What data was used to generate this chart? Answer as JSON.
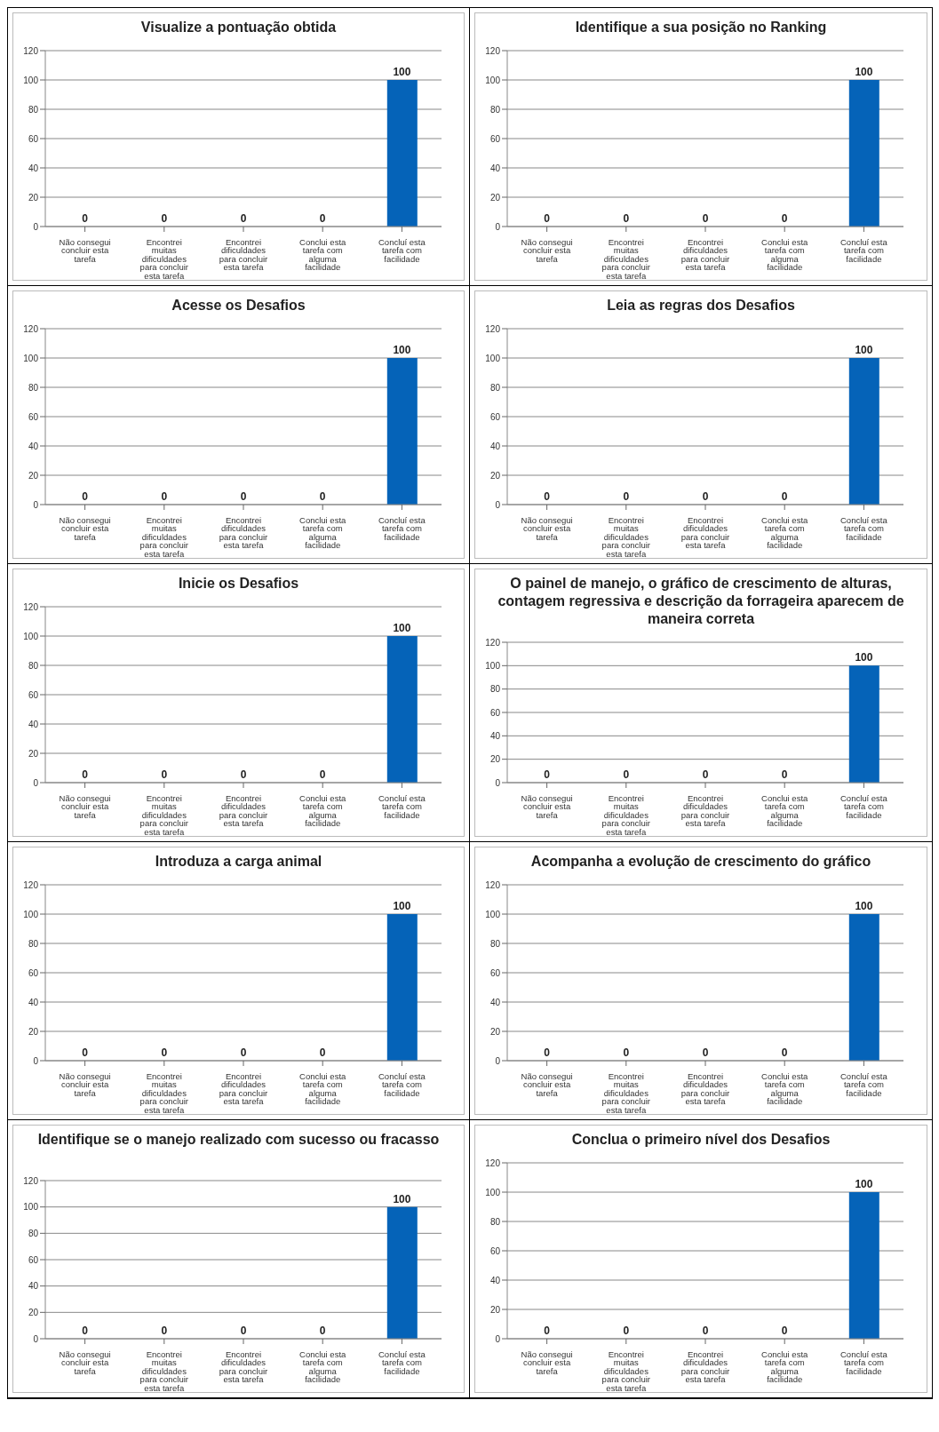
{
  "chart_data": [
    {
      "type": "bar",
      "title": "Visualize a pontuação obtida",
      "categories": [
        "Não consegui concluir esta tarefa",
        "Encontrei muitas dificuldades para concluir esta tarefa",
        "Encontrei dificuldades para concluir esta tarefa",
        "Conclui esta tarefa com alguma facilidade",
        "Concluí esta tarefa com facilidade"
      ],
      "values": [
        0,
        0,
        0,
        0,
        100
      ],
      "color": "#0563b8",
      "ylim": [
        0,
        120
      ],
      "yticks": [
        0,
        20,
        40,
        60,
        80,
        100,
        120
      ],
      "grid": "y",
      "data_labels": true
    },
    {
      "type": "bar",
      "title": "Identifique a sua posição no Ranking",
      "categories": [
        "Não consegui concluir esta tarefa",
        "Encontrei muitas dificuldades para concluir esta tarefa",
        "Encontrei dificuldades para concluir esta tarefa",
        "Conclui esta tarefa com alguma facilidade",
        "Concluí esta tarefa com facilidade"
      ],
      "values": [
        0,
        0,
        0,
        0,
        100
      ],
      "color": "#0563b8",
      "ylim": [
        0,
        120
      ],
      "yticks": [
        0,
        20,
        40,
        60,
        80,
        100,
        120
      ],
      "grid": "y",
      "data_labels": true
    },
    {
      "type": "bar",
      "title": "Acesse os Desafios",
      "categories": [
        "Não consegui concluir esta tarefa",
        "Encontrei muitas dificuldades para concluir esta tarefa",
        "Encontrei dificuldades para concluir esta tarefa",
        "Conclui esta tarefa com alguma facilidade",
        "Concluí esta tarefa com facilidade"
      ],
      "values": [
        0,
        0,
        0,
        0,
        100
      ],
      "color": "#0563b8",
      "ylim": [
        0,
        120
      ],
      "yticks": [
        0,
        20,
        40,
        60,
        80,
        100,
        120
      ],
      "grid": "y",
      "data_labels": true
    },
    {
      "type": "bar",
      "title": "Leia as regras dos Desafios",
      "categories": [
        "Não consegui concluir esta tarefa",
        "Encontrei muitas dificuldades para concluir esta tarefa",
        "Encontrei dificuldades para concluir esta tarefa",
        "Conclui esta tarefa com alguma facilidade",
        "Concluí esta tarefa com facilidade"
      ],
      "values": [
        0,
        0,
        0,
        0,
        100
      ],
      "color": "#0563b8",
      "ylim": [
        0,
        120
      ],
      "yticks": [
        0,
        20,
        40,
        60,
        80,
        100,
        120
      ],
      "grid": "y",
      "data_labels": true
    },
    {
      "type": "bar",
      "title": "Inicie os Desafios",
      "categories": [
        "Não consegui concluir esta tarefa",
        "Encontrei muitas dificuldades para concluir esta tarefa",
        "Encontrei dificuldades para concluir esta tarefa",
        "Conclui esta tarefa com alguma facilidade",
        "Concluí esta tarefa com facilidade"
      ],
      "values": [
        0,
        0,
        0,
        0,
        100
      ],
      "color": "#0563b8",
      "ylim": [
        0,
        120
      ],
      "yticks": [
        0,
        20,
        40,
        60,
        80,
        100,
        120
      ],
      "grid": "y",
      "data_labels": true
    },
    {
      "type": "bar",
      "title": "O painel de manejo, o gráfico de crescimento de alturas, contagem regressiva e descrição da forrageira aparecem de maneira correta",
      "categories": [
        "Não consegui concluir esta tarefa",
        "Encontrei muitas dificuldades para concluir esta tarefa",
        "Encontrei dificuldades para concluir esta tarefa",
        "Conclui esta tarefa com alguma facilidade",
        "Concluí esta tarefa com facilidade"
      ],
      "values": [
        0,
        0,
        0,
        0,
        100
      ],
      "color": "#0563b8",
      "ylim": [
        0,
        120
      ],
      "yticks": [
        0,
        20,
        40,
        60,
        80,
        100,
        120
      ],
      "grid": "y",
      "data_labels": true
    },
    {
      "type": "bar",
      "title": "Introduza a carga animal",
      "categories": [
        "Não consegui concluir esta tarefa",
        "Encontrei muitas dificuldades para concluir esta tarefa",
        "Encontrei dificuldades para concluir esta tarefa",
        "Conclui esta tarefa com alguma facilidade",
        "Concluí esta tarefa com facilidade"
      ],
      "values": [
        0,
        0,
        0,
        0,
        100
      ],
      "color": "#0563b8",
      "ylim": [
        0,
        120
      ],
      "yticks": [
        0,
        20,
        40,
        60,
        80,
        100,
        120
      ],
      "grid": "y",
      "data_labels": true
    },
    {
      "type": "bar",
      "title": "Acompanha a evolução de crescimento do gráfico",
      "categories": [
        "Não consegui concluir esta tarefa",
        "Encontrei muitas dificuldades para concluir esta tarefa",
        "Encontrei dificuldades para concluir esta tarefa",
        "Conclui esta tarefa com alguma facilidade",
        "Concluí esta tarefa com facilidade"
      ],
      "values": [
        0,
        0,
        0,
        0,
        100
      ],
      "color": "#0563b8",
      "ylim": [
        0,
        120
      ],
      "yticks": [
        0,
        20,
        40,
        60,
        80,
        100,
        120
      ],
      "grid": "y",
      "data_labels": true
    },
    {
      "type": "bar",
      "title": "Identifique se o manejo realizado com sucesso ou fracasso",
      "categories": [
        "Não consegui concluir esta tarefa",
        "Encontrei muitas dificuldades para concluir esta tarefa",
        "Encontrei dificuldades para concluir esta tarefa",
        "Conclui esta tarefa com alguma facilidade",
        "Concluí esta tarefa com facilidade"
      ],
      "values": [
        0,
        0,
        0,
        0,
        100
      ],
      "color": "#0563b8",
      "ylim": [
        0,
        120
      ],
      "yticks": [
        0,
        20,
        40,
        60,
        80,
        100,
        120
      ],
      "grid": "y",
      "data_labels": true
    },
    {
      "type": "bar",
      "title": "Conclua o primeiro nível dos Desafios",
      "categories": [
        "Não consegui concluir esta tarefa",
        "Encontrei muitas dificuldades para concluir esta tarefa",
        "Encontrei dificuldades para concluir esta tarefa",
        "Conclui esta tarefa com alguma facilidade",
        "Concluí esta tarefa com facilidade"
      ],
      "values": [
        0,
        0,
        0,
        0,
        100
      ],
      "color": "#0563b8",
      "ylim": [
        0,
        120
      ],
      "yticks": [
        0,
        20,
        40,
        60,
        80,
        100,
        120
      ],
      "grid": "y",
      "data_labels": true
    }
  ]
}
